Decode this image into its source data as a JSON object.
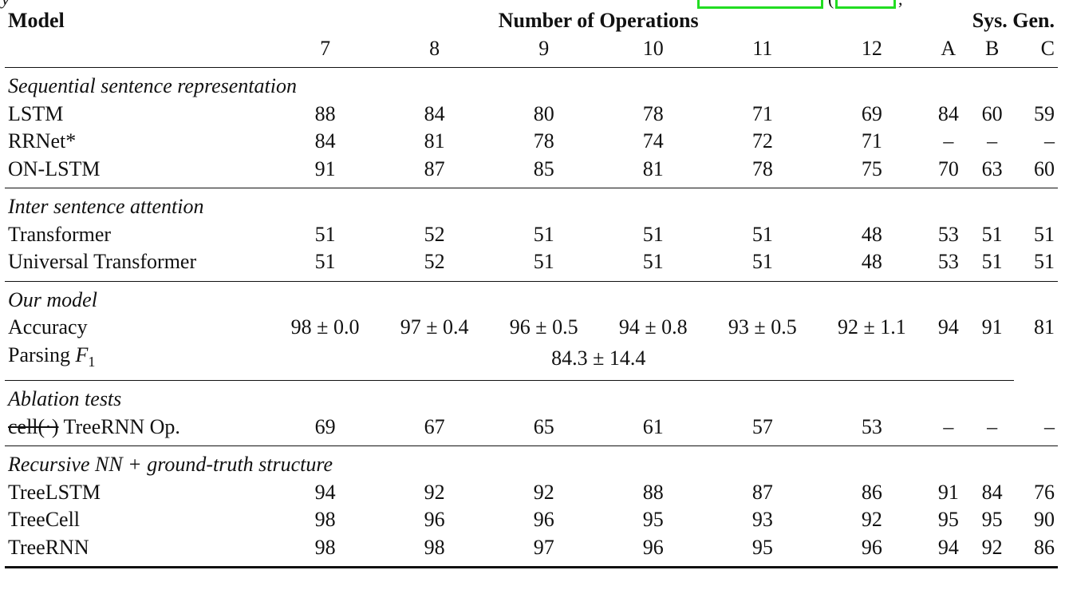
{
  "top_fragment": {
    "letter": "y",
    "paren": "(",
    "comma": ","
  },
  "header": {
    "model": "Model",
    "ops_group": "Number of Operations",
    "sys_group": "Sys. Gen.",
    "ops": [
      "7",
      "8",
      "9",
      "10",
      "11",
      "12"
    ],
    "sys": [
      "A",
      "B",
      "C"
    ]
  },
  "sections": {
    "sequential": {
      "title": "Sequential sentence representation",
      "rows": [
        {
          "model": "LSTM",
          "ops": [
            "88",
            "84",
            "80",
            "78",
            "71",
            "69"
          ],
          "sys": [
            "84",
            "60",
            "59"
          ]
        },
        {
          "model": "RRNet*",
          "ops": [
            "84",
            "81",
            "78",
            "74",
            "72",
            "71"
          ],
          "sys": [
            "–",
            "–",
            "–"
          ]
        },
        {
          "model": "ON-LSTM",
          "ops": [
            "91",
            "87",
            "85",
            "81",
            "78",
            "75"
          ],
          "sys": [
            "70",
            "63",
            "60"
          ]
        }
      ]
    },
    "inter": {
      "title": "Inter sentence attention",
      "rows": [
        {
          "model": "Transformer",
          "ops": [
            "51",
            "52",
            "51",
            "51",
            "51",
            "48"
          ],
          "sys": [
            "53",
            "51",
            "51"
          ]
        },
        {
          "model": "Universal Transformer",
          "ops": [
            "51",
            "52",
            "51",
            "51",
            "51",
            "48"
          ],
          "sys": [
            "53",
            "51",
            "51"
          ]
        }
      ]
    },
    "ours": {
      "title": "Our model",
      "accuracy": {
        "model": "Accuracy",
        "ops": [
          "98 ± 0.0",
          "97 ± 0.4",
          "96 ± 0.5",
          "94 ± 0.8",
          "93 ± 0.5",
          "92 ± 1.1"
        ],
        "sys": [
          "94",
          "91",
          "81"
        ]
      },
      "parsing": {
        "model_prefix": "Parsing ",
        "f": "F",
        "sub": "1",
        "value": "84.3 ± 14.4"
      }
    },
    "ablation": {
      "title": "Ablation tests",
      "row": {
        "struck": "cell(·)",
        "model": " TreeRNN Op.",
        "ops": [
          "69",
          "67",
          "65",
          "61",
          "57",
          "53"
        ],
        "sys": [
          "–",
          "–",
          "–"
        ]
      }
    },
    "recursive": {
      "title": "Recursive NN + ground-truth structure",
      "rows": [
        {
          "model": "TreeLSTM",
          "ops": [
            "94",
            "92",
            "92",
            "88",
            "87",
            "86"
          ],
          "sys": [
            "91",
            "84",
            "76"
          ]
        },
        {
          "model": "TreeCell",
          "ops": [
            "98",
            "96",
            "96",
            "95",
            "93",
            "92"
          ],
          "sys": [
            "95",
            "95",
            "90"
          ]
        },
        {
          "model": "TreeRNN",
          "ops": [
            "98",
            "98",
            "97",
            "96",
            "95",
            "96"
          ],
          "sys": [
            "94",
            "92",
            "86"
          ]
        }
      ]
    }
  }
}
